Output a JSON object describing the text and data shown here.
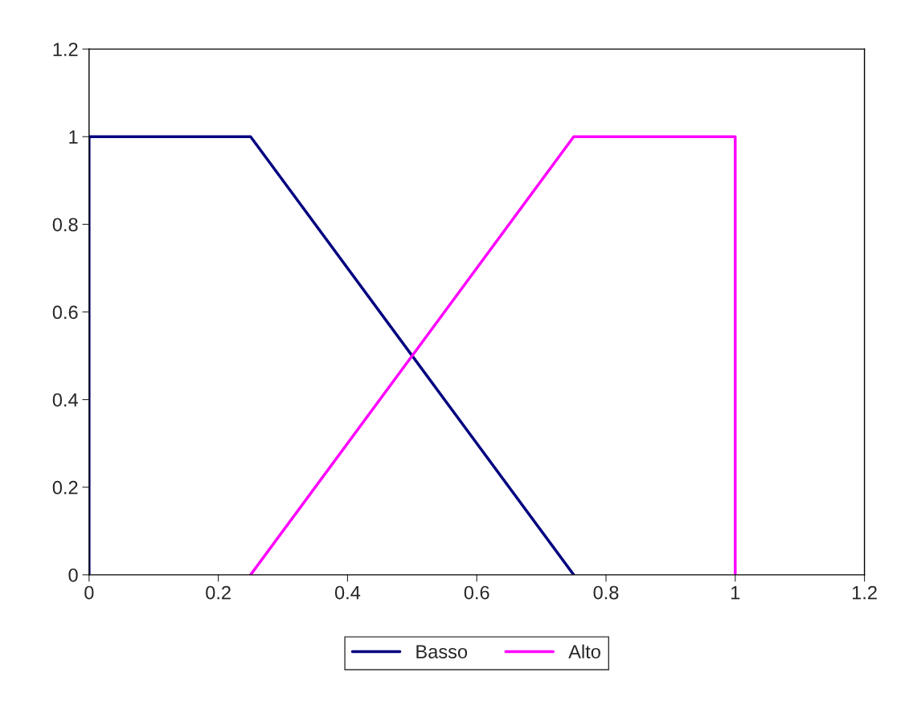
{
  "chart_data": {
    "type": "line",
    "series": [
      {
        "name": "Basso",
        "color": "#000080",
        "x": [
          0,
          0,
          0.25,
          0.75
        ],
        "values": [
          0,
          1,
          1,
          0
        ]
      },
      {
        "name": "Alto",
        "color": "#ff00ff",
        "x": [
          0.25,
          0.75,
          1,
          1
        ],
        "values": [
          0,
          1,
          1,
          0
        ]
      }
    ],
    "xlim": [
      0,
      1.2
    ],
    "xticks": [
      0,
      0.2,
      0.4,
      0.6,
      0.8,
      1,
      1.2
    ],
    "ylim": [
      0,
      1.2
    ],
    "yticks": [
      0,
      0.2,
      0.4,
      0.6,
      0.8,
      1,
      1.2
    ],
    "grid": false,
    "legend": "bottom",
    "marker": "none",
    "line_style": "solid"
  }
}
